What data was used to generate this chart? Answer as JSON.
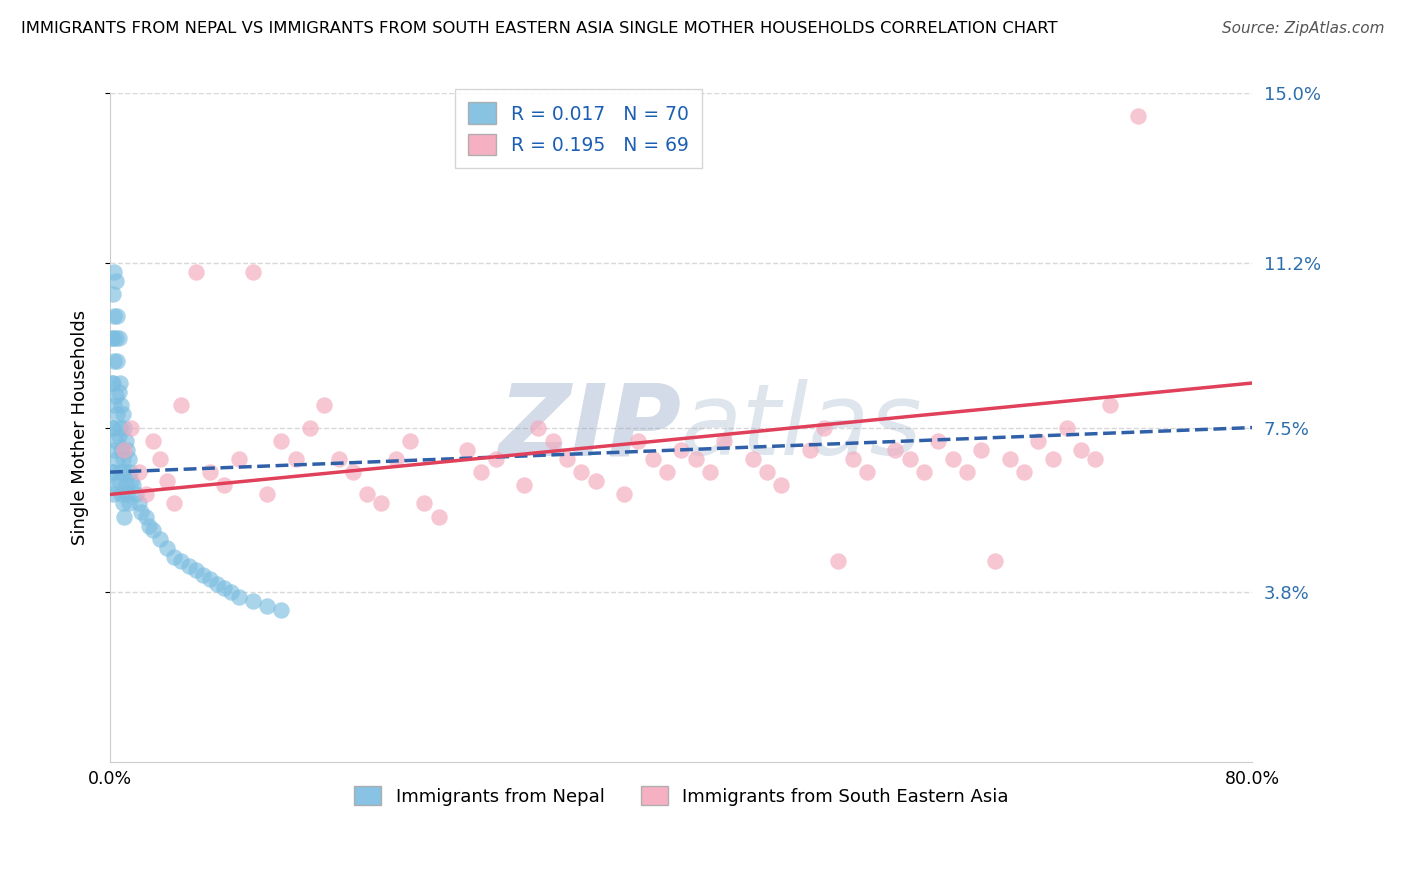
{
  "title": "IMMIGRANTS FROM NEPAL VS IMMIGRANTS FROM SOUTH EASTERN ASIA SINGLE MOTHER HOUSEHOLDS CORRELATION CHART",
  "source": "Source: ZipAtlas.com",
  "ylabel": "Single Mother Households",
  "x_min": 0.0,
  "x_max": 0.8,
  "y_min": 0.0,
  "y_max": 0.15,
  "y_ticks": [
    0.038,
    0.075,
    0.112,
    0.15
  ],
  "y_tick_labels": [
    "3.8%",
    "7.5%",
    "11.2%",
    "15.0%"
  ],
  "legend_labels": [
    "Immigrants from Nepal",
    "Immigrants from South Eastern Asia"
  ],
  "nepal_R": 0.017,
  "nepal_N": 70,
  "sea_R": 0.195,
  "sea_N": 69,
  "nepal_color": "#7bbde0",
  "sea_color": "#f4a8bc",
  "nepal_line_color": "#3060a8",
  "sea_line_color": "#e0405a",
  "watermark_text": "ZIPatlas",
  "watermark_color": "#c8d8ee",
  "grid_color": "#d8d8d8",
  "nepal_line_start_y": 0.065,
  "nepal_line_end_y": 0.075,
  "sea_line_start_y": 0.06,
  "sea_line_end_y": 0.085,
  "nepal_x": [
    0.001,
    0.001,
    0.001,
    0.001,
    0.002,
    0.002,
    0.002,
    0.002,
    0.002,
    0.002,
    0.003,
    0.003,
    0.003,
    0.003,
    0.003,
    0.004,
    0.004,
    0.004,
    0.004,
    0.004,
    0.005,
    0.005,
    0.005,
    0.005,
    0.006,
    0.006,
    0.006,
    0.006,
    0.007,
    0.007,
    0.007,
    0.008,
    0.008,
    0.008,
    0.009,
    0.009,
    0.009,
    0.01,
    0.01,
    0.01,
    0.011,
    0.011,
    0.012,
    0.012,
    0.013,
    0.013,
    0.014,
    0.015,
    0.016,
    0.018,
    0.02,
    0.022,
    0.025,
    0.027,
    0.03,
    0.035,
    0.04,
    0.045,
    0.05,
    0.055,
    0.06,
    0.065,
    0.07,
    0.075,
    0.08,
    0.085,
    0.09,
    0.1,
    0.11,
    0.12
  ],
  "nepal_y": [
    0.095,
    0.085,
    0.075,
    0.065,
    0.105,
    0.095,
    0.085,
    0.075,
    0.065,
    0.06,
    0.11,
    0.1,
    0.09,
    0.08,
    0.07,
    0.108,
    0.095,
    0.082,
    0.072,
    0.062,
    0.1,
    0.09,
    0.078,
    0.068,
    0.095,
    0.083,
    0.073,
    0.063,
    0.085,
    0.075,
    0.065,
    0.08,
    0.07,
    0.06,
    0.078,
    0.068,
    0.058,
    0.075,
    0.065,
    0.055,
    0.072,
    0.062,
    0.07,
    0.06,
    0.068,
    0.058,
    0.065,
    0.063,
    0.062,
    0.06,
    0.058,
    0.056,
    0.055,
    0.053,
    0.052,
    0.05,
    0.048,
    0.046,
    0.045,
    0.044,
    0.043,
    0.042,
    0.041,
    0.04,
    0.039,
    0.038,
    0.037,
    0.036,
    0.035,
    0.034
  ],
  "sea_x": [
    0.01,
    0.015,
    0.02,
    0.025,
    0.03,
    0.035,
    0.04,
    0.045,
    0.05,
    0.06,
    0.07,
    0.08,
    0.09,
    0.1,
    0.11,
    0.12,
    0.13,
    0.14,
    0.15,
    0.16,
    0.17,
    0.18,
    0.19,
    0.2,
    0.21,
    0.22,
    0.23,
    0.25,
    0.26,
    0.27,
    0.29,
    0.3,
    0.31,
    0.32,
    0.33,
    0.34,
    0.36,
    0.37,
    0.38,
    0.39,
    0.4,
    0.41,
    0.42,
    0.43,
    0.45,
    0.46,
    0.47,
    0.49,
    0.5,
    0.51,
    0.52,
    0.53,
    0.55,
    0.56,
    0.57,
    0.58,
    0.59,
    0.6,
    0.61,
    0.62,
    0.63,
    0.64,
    0.65,
    0.66,
    0.67,
    0.68,
    0.69,
    0.7,
    0.72
  ],
  "sea_y": [
    0.07,
    0.075,
    0.065,
    0.06,
    0.072,
    0.068,
    0.063,
    0.058,
    0.08,
    0.11,
    0.065,
    0.062,
    0.068,
    0.11,
    0.06,
    0.072,
    0.068,
    0.075,
    0.08,
    0.068,
    0.065,
    0.06,
    0.058,
    0.068,
    0.072,
    0.058,
    0.055,
    0.07,
    0.065,
    0.068,
    0.062,
    0.075,
    0.072,
    0.068,
    0.065,
    0.063,
    0.06,
    0.072,
    0.068,
    0.065,
    0.07,
    0.068,
    0.065,
    0.072,
    0.068,
    0.065,
    0.062,
    0.07,
    0.075,
    0.045,
    0.068,
    0.065,
    0.07,
    0.068,
    0.065,
    0.072,
    0.068,
    0.065,
    0.07,
    0.045,
    0.068,
    0.065,
    0.072,
    0.068,
    0.075,
    0.07,
    0.068,
    0.08,
    0.145
  ]
}
